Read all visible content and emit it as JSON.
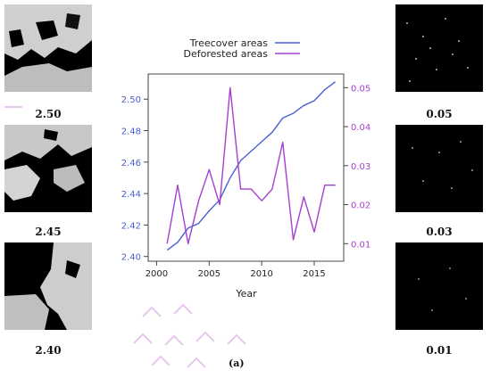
{
  "chart_data": {
    "type": "line",
    "xlabel": "Year",
    "x": [
      2001,
      2002,
      2003,
      2004,
      2005,
      2006,
      2007,
      2008,
      2009,
      2010,
      2011,
      2012,
      2013,
      2014,
      2015,
      2016,
      2017
    ],
    "xlim": [
      1999.2,
      2017.8
    ],
    "xticks": [
      2000,
      2005,
      2010,
      2015
    ],
    "series": [
      {
        "name": "Treecover areas",
        "axis": "left",
        "color": "#4a5fd1",
        "values": [
          2.404,
          2.409,
          2.418,
          2.421,
          2.429,
          2.436,
          2.45,
          2.461,
          2.467,
          2.473,
          2.479,
          2.488,
          2.491,
          2.496,
          2.499,
          2.506,
          2.511
        ]
      },
      {
        "name": "Deforested areas",
        "axis": "right",
        "color": "#a43fd0",
        "values": [
          0.01,
          0.025,
          0.01,
          0.021,
          0.029,
          0.02,
          0.05,
          0.024,
          0.024,
          0.021,
          0.024,
          0.036,
          0.011,
          0.022,
          0.013,
          0.025,
          0.025
        ]
      }
    ],
    "ylim_left": [
      2.397,
      2.516
    ],
    "yticks_left": [
      2.4,
      2.42,
      2.44,
      2.46,
      2.48,
      2.5
    ],
    "yticklabels_left": [
      "2.40",
      "2.42",
      "2.44",
      "2.46",
      "2.48",
      "2.50"
    ],
    "ylim_right": [
      0.0055,
      0.0535
    ],
    "yticks_right": [
      0.01,
      0.02,
      0.03,
      0.04,
      0.05
    ],
    "yticklabels_right": [
      "0.01",
      "0.02",
      "0.03",
      "0.04",
      "0.05"
    ],
    "legend_placement": "top"
  },
  "thumbnails": {
    "left": [
      "2.50",
      "2.45",
      "2.40"
    ],
    "right": [
      "0.05",
      "0.03",
      "0.01"
    ]
  },
  "caption": "(a)"
}
